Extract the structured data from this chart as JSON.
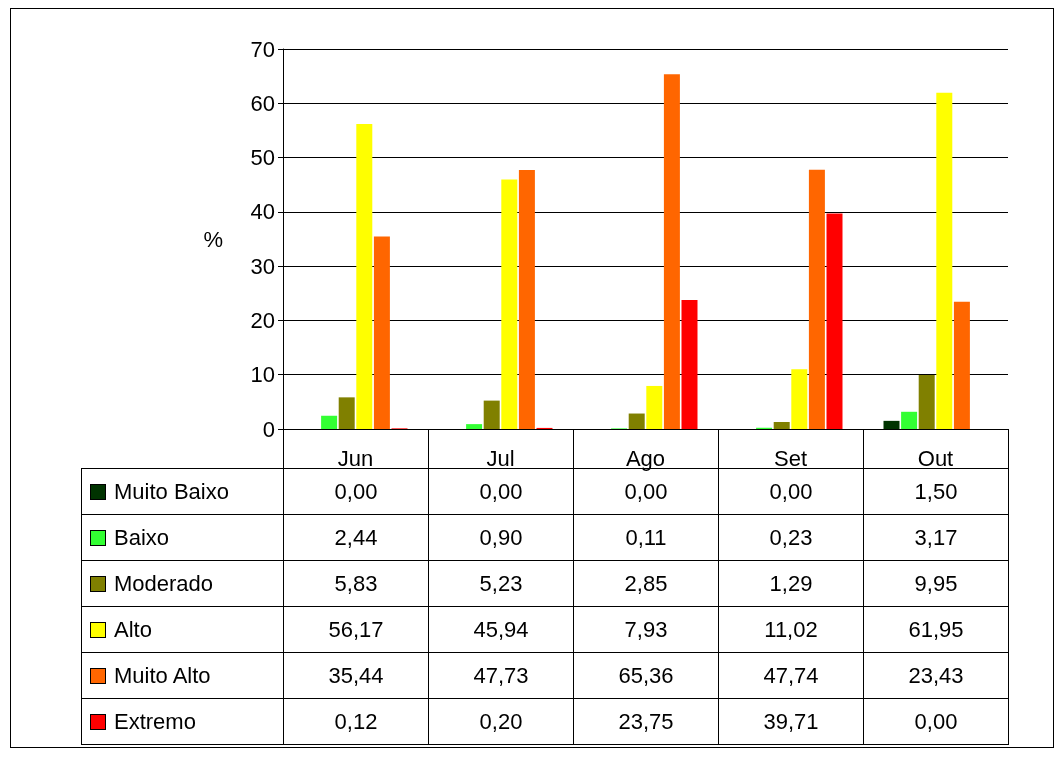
{
  "chart_data": {
    "type": "bar",
    "ylabel": "%",
    "categories": [
      "Jun",
      "Jul",
      "Ago",
      "Set",
      "Out"
    ],
    "series": [
      {
        "name": "Muito Baixo",
        "color": "#003300",
        "values": [
          0.0,
          0.0,
          0.0,
          0.0,
          1.5
        ],
        "value_labels": [
          "0,00",
          "0,00",
          "0,00",
          "0,00",
          "1,50"
        ]
      },
      {
        "name": "Baixo",
        "color": "#33ff33",
        "values": [
          2.44,
          0.9,
          0.11,
          0.23,
          3.17
        ],
        "value_labels": [
          "2,44",
          "0,90",
          "0,11",
          "0,23",
          "3,17"
        ]
      },
      {
        "name": "Moderado",
        "color": "#808000",
        "values": [
          5.83,
          5.23,
          2.85,
          1.29,
          9.95
        ],
        "value_labels": [
          "5,83",
          "5,23",
          "2,85",
          "1,29",
          "9,95"
        ]
      },
      {
        "name": "Alto",
        "color": "#ffff00",
        "values": [
          56.17,
          45.94,
          7.93,
          11.02,
          61.95
        ],
        "value_labels": [
          "56,17",
          "45,94",
          "7,93",
          "11,02",
          "61,95"
        ]
      },
      {
        "name": "Muito Alto",
        "color": "#ff6600",
        "values": [
          35.44,
          47.73,
          65.36,
          47.74,
          23.43
        ],
        "value_labels": [
          "35,44",
          "47,73",
          "65,36",
          "47,74",
          "23,43"
        ]
      },
      {
        "name": "Extremo",
        "color": "#ff0000",
        "values": [
          0.12,
          0.2,
          23.75,
          39.71,
          0.0
        ],
        "value_labels": [
          "0,12",
          "0,20",
          "23,75",
          "39,71",
          "0,00"
        ]
      }
    ],
    "ylim": [
      0,
      70
    ],
    "yticks": [
      0,
      10,
      20,
      30,
      40,
      50,
      60,
      70
    ],
    "grid": "y",
    "legend": "bottom"
  }
}
